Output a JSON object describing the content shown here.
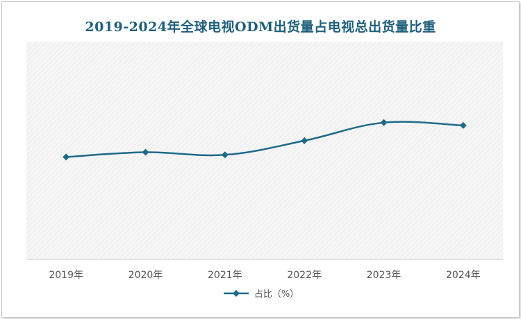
{
  "chart_data": {
    "type": "line",
    "title": "2019-2024年全球电视ODM出货量占电视总出货量比重",
    "categories": [
      "2019年",
      "2020年",
      "2021年",
      "2022年",
      "2023年",
      "2024年"
    ],
    "series": [
      {
        "name": "占比（%）",
        "values": [
          47.0,
          49.2,
          48.0,
          54.5,
          62.8,
          61.5
        ]
      }
    ],
    "ylim": [
      0,
      100
    ],
    "grid": false,
    "legend_position": "bottom",
    "line_color": "#1f6a8a"
  }
}
